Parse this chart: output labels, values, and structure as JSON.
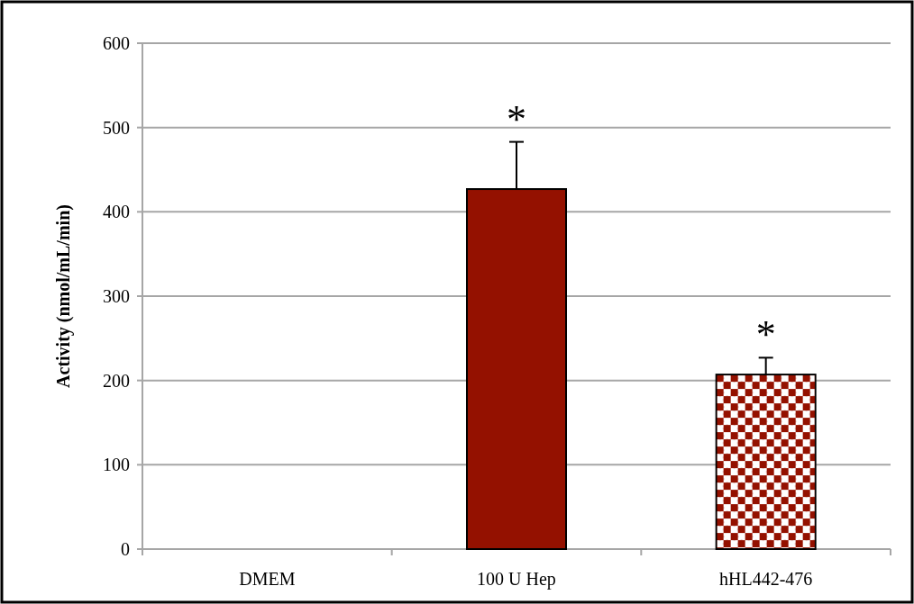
{
  "chart_data": {
    "type": "bar",
    "ylabel": "Activity (nmol/mL/min)",
    "categories": [
      "DMEM",
      "100 U Hep",
      "hHL442-476"
    ],
    "values": [
      0,
      427,
      207
    ],
    "errors": [
      null,
      [
        427,
        483
      ],
      [
        207,
        227
      ]
    ],
    "colors": [
      "#941100",
      "#941100",
      "#941100"
    ],
    "ylim": [
      0,
      600
    ],
    "yticks": [
      0,
      100,
      200,
      300,
      400,
      500,
      600
    ],
    "grid": "y",
    "annotations": [
      {
        "text": "*",
        "x": "100 U Hep",
        "y": 483
      },
      {
        "text": "*",
        "x": "hHL442-476",
        "y": 227
      }
    ]
  }
}
